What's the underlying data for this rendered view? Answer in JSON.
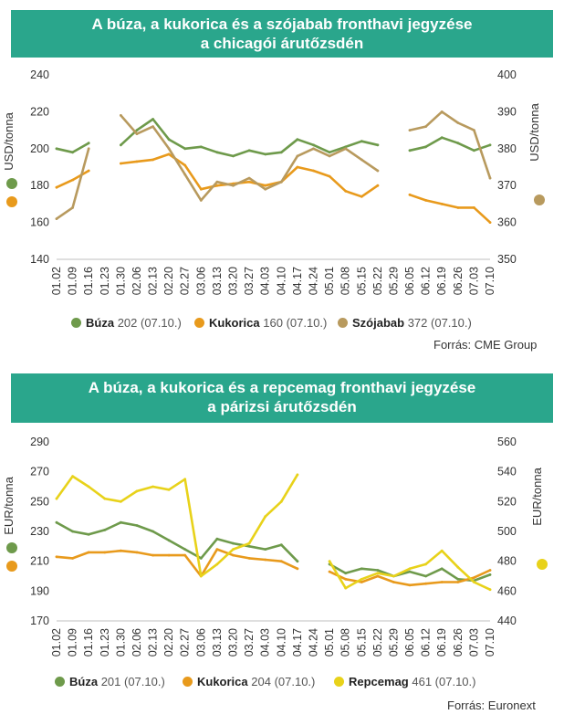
{
  "chart1": {
    "title_line1": "A búza, a kukorica és a szójabab fronthavi jegyzése",
    "title_line2": "a chicagói árutőzsdén",
    "source": "Forrás: CME Group",
    "colors": {
      "buza": "#6e9a4b",
      "kukorica": "#e89a1c",
      "szojabab": "#b89a5e"
    },
    "legend": [
      {
        "name": "Búza",
        "value": "202 (07.10.)"
      },
      {
        "name": "Kukorica",
        "value": "160 (07.10.)"
      },
      {
        "name": "Szójabab",
        "value": "372 (07.10.)"
      }
    ]
  },
  "chart2": {
    "title_line1": "A búza, a kukorica és a repcemag fronthavi jegyzése",
    "title_line2": "a párizsi árutőzsdén",
    "source": "Forrás: Euronext",
    "colors": {
      "buza": "#6e9a4b",
      "kukorica": "#e89a1c",
      "repcemag": "#e8d21a"
    },
    "legend": [
      {
        "name": "Búza",
        "value": "201 (07.10.)"
      },
      {
        "name": "Kukorica",
        "value": "204 (07.10.)"
      },
      {
        "name": "Repcemag",
        "value": "461 (07.10.)"
      }
    ]
  },
  "chart_data": [
    {
      "type": "line",
      "title": "A búza, a kukorica és a szójabab fronthavi jegyzése a chicagói árutőzsdén",
      "ylabel": "USD/tonna",
      "y2label": "USD/tonna",
      "ylim": [
        140,
        240
      ],
      "y2lim": [
        350,
        400
      ],
      "yticks": [
        "240",
        "220",
        "200",
        "180",
        "160",
        "140"
      ],
      "y2ticks": [
        "400",
        "390",
        "380",
        "370",
        "360",
        "350"
      ],
      "x": [
        "01.02",
        "01.09",
        "01.16",
        "01.23",
        "01.30",
        "02.06",
        "02.13",
        "02.20",
        "02.27",
        "03.06",
        "03.13",
        "03.20",
        "03.27",
        "04.03",
        "04.10",
        "04.17",
        "04.24",
        "05.01",
        "05.08",
        "05.15",
        "05.22",
        "05.29",
        "06.05",
        "06.12",
        "06.19",
        "06.26",
        "07.03",
        "07.10"
      ],
      "grid": false,
      "legend_position": "bottom",
      "series": [
        {
          "name": "Búza",
          "axis": "left",
          "values": [
            200,
            198,
            203,
            null,
            202,
            210,
            216,
            205,
            200,
            201,
            198,
            196,
            199,
            197,
            198,
            205,
            202,
            198,
            201,
            204,
            202,
            null,
            199,
            201,
            206,
            203,
            199,
            202
          ],
          "segments": [
            [
              0,
              2
            ],
            [
              4,
              20
            ],
            [
              22,
              27
            ]
          ]
        },
        {
          "name": "Kukorica",
          "axis": "left",
          "values": [
            179,
            183,
            188,
            null,
            192,
            193,
            194,
            197,
            191,
            178,
            180,
            181,
            182,
            180,
            182,
            190,
            188,
            185,
            177,
            174,
            180,
            null,
            175,
            172,
            170,
            168,
            168,
            160
          ],
          "segments": [
            [
              0,
              2
            ],
            [
              4,
              20
            ],
            [
              22,
              27
            ]
          ]
        },
        {
          "name": "Szójabab",
          "axis": "right",
          "values": [
            361,
            364,
            380,
            null,
            389,
            384,
            386,
            380,
            373,
            366,
            371,
            370,
            372,
            369,
            371,
            378,
            380,
            378,
            380,
            377,
            374,
            null,
            385,
            386,
            390,
            387,
            385,
            372
          ],
          "segments": [
            [
              0,
              2
            ],
            [
              4,
              20
            ],
            [
              22,
              27
            ]
          ]
        }
      ]
    },
    {
      "type": "line",
      "title": "A búza, a kukorica és a repcemag fronthavi jegyzése a párizsi árutőzsdén",
      "ylabel": "EUR/tonna",
      "y2label": "EUR/tonna",
      "ylim": [
        170,
        290
      ],
      "y2lim": [
        440,
        560
      ],
      "yticks": [
        "290",
        "270",
        "250",
        "230",
        "210",
        "190",
        "170"
      ],
      "y2ticks": [
        "560",
        "540",
        "520",
        "500",
        "480",
        "460",
        "440"
      ],
      "x": [
        "01.02",
        "01.09",
        "01.16",
        "01.23",
        "01.30",
        "02.06",
        "02.13",
        "02.20",
        "02.27",
        "03.06",
        "03.13",
        "03.20",
        "03.27",
        "04.03",
        "04.10",
        "04.17",
        "04.24",
        "05.01",
        "05.08",
        "05.15",
        "05.22",
        "05.29",
        "06.05",
        "06.12",
        "06.19",
        "06.26",
        "07.03",
        "07.10"
      ],
      "grid": false,
      "legend_position": "bottom",
      "series": [
        {
          "name": "Búza",
          "axis": "left",
          "values": [
            236,
            230,
            228,
            231,
            236,
            234,
            230,
            224,
            218,
            212,
            225,
            222,
            220,
            218,
            221,
            210,
            null,
            208,
            202,
            205,
            204,
            200,
            203,
            200,
            205,
            198,
            197,
            201
          ],
          "segments": [
            [
              0,
              15
            ],
            [
              17,
              27
            ]
          ]
        },
        {
          "name": "Kukorica",
          "axis": "left",
          "values": [
            213,
            212,
            216,
            216,
            217,
            216,
            214,
            214,
            214,
            200,
            218,
            214,
            212,
            211,
            210,
            205,
            null,
            203,
            198,
            196,
            200,
            196,
            194,
            195,
            196,
            196,
            199,
            204
          ],
          "segments": [
            [
              0,
              15
            ],
            [
              17,
              27
            ]
          ]
        },
        {
          "name": "Repcemag",
          "axis": "right",
          "values": [
            522,
            537,
            530,
            522,
            520,
            527,
            530,
            528,
            535,
            470,
            478,
            488,
            492,
            510,
            520,
            538,
            null,
            480,
            462,
            468,
            472,
            470,
            475,
            478,
            487,
            476,
            466,
            461
          ],
          "segments": [
            [
              0,
              15
            ],
            [
              17,
              27
            ]
          ]
        }
      ]
    }
  ]
}
